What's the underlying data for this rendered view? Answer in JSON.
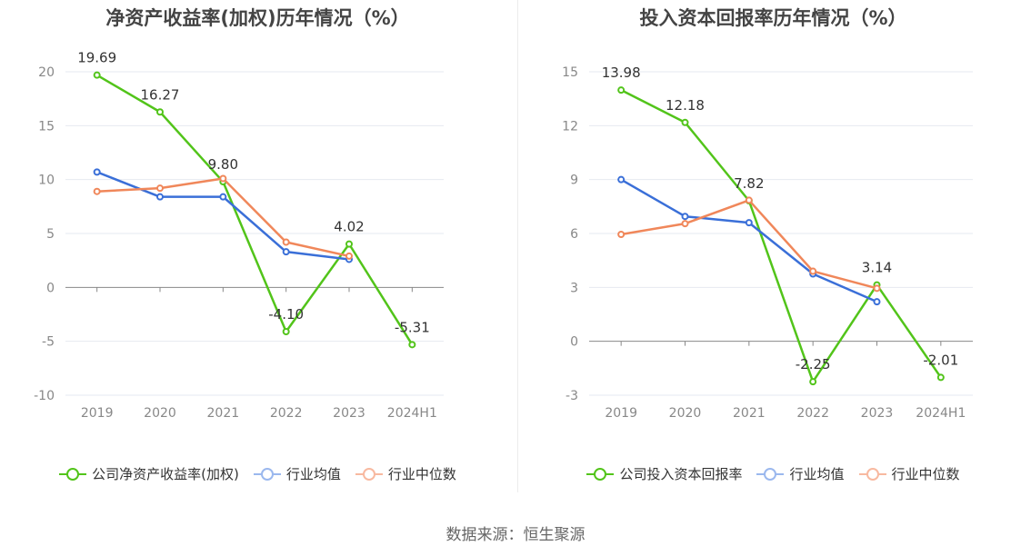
{
  "charts": [
    {
      "title": "净资产收益率(加权)历年情况（%）",
      "legend": [
        "公司净资产收益率(加权)",
        "行业均值",
        "行业中位数"
      ]
    },
    {
      "title": "投入资本回报率历年情况（%）",
      "legend": [
        "公司投入资本回报率",
        "行业均值",
        "行业中位数"
      ]
    }
  ],
  "source": "数据来源：恒生聚源",
  "colors": {
    "company": "#52c41a",
    "mean": "#3a6fd8",
    "median": "#f0875a",
    "grid": "#e6e9f0",
    "axis": "#888888"
  },
  "chart_data": [
    {
      "type": "line",
      "title": "净资产收益率(加权)历年情况（%）",
      "categories": [
        "2019",
        "2020",
        "2021",
        "2022",
        "2023",
        "2024H1"
      ],
      "ylim": [
        -10,
        20
      ],
      "yticks": [
        -10,
        -5,
        0,
        5,
        10,
        15,
        20
      ],
      "ytick_labels": [
        "-10",
        "-5",
        "0",
        "5",
        "10",
        "15",
        "20"
      ],
      "legend_position": "bottom",
      "grid": true,
      "series": [
        {
          "name": "公司净资产收益率(加权)",
          "values": [
            19.69,
            16.27,
            9.8,
            -4.1,
            4.02,
            -5.31
          ],
          "labels": [
            "19.69",
            "16.27",
            "9.80",
            "-4.10",
            "4.02",
            "-5.31"
          ]
        },
        {
          "name": "行业均值",
          "values": [
            10.7,
            8.4,
            8.4,
            3.3,
            2.6,
            null
          ]
        },
        {
          "name": "行业中位数",
          "values": [
            8.9,
            9.2,
            10.1,
            4.2,
            2.9,
            null
          ]
        }
      ]
    },
    {
      "type": "line",
      "title": "投入资本回报率历年情况（%）",
      "categories": [
        "2019",
        "2020",
        "2021",
        "2022",
        "2023",
        "2024H1"
      ],
      "ylim": [
        -3,
        15
      ],
      "yticks": [
        -3,
        0,
        3,
        6,
        9,
        12,
        15
      ],
      "ytick_labels": [
        "-3",
        "0",
        "3",
        "6",
        "9",
        "12",
        "15"
      ],
      "legend_position": "bottom",
      "grid": true,
      "series": [
        {
          "name": "公司投入资本回报率",
          "values": [
            13.98,
            12.18,
            7.82,
            -2.25,
            3.14,
            -2.01
          ],
          "labels": [
            "13.98",
            "12.18",
            "7.82",
            "-2.25",
            "3.14",
            "-2.01"
          ]
        },
        {
          "name": "行业均值",
          "values": [
            9.0,
            6.95,
            6.6,
            3.75,
            2.2,
            null
          ]
        },
        {
          "name": "行业中位数",
          "values": [
            5.95,
            6.55,
            7.85,
            3.9,
            2.95,
            null
          ]
        }
      ]
    }
  ]
}
